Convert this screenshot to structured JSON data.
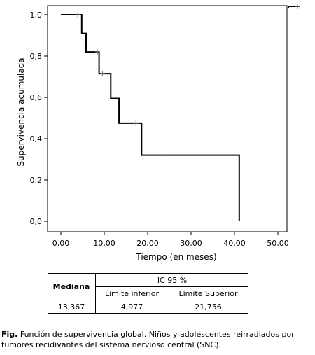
{
  "chart_data": {
    "type": "line",
    "subtype": "kaplan-meier step",
    "xlabel": "Tiempo (en meses)",
    "ylabel": "Supervivencia acumulada",
    "xlim": [
      0,
      52
    ],
    "ylim": [
      0,
      1.0
    ],
    "xticks": [
      "0,00",
      "10,00",
      "20,00",
      "30,00",
      "40,00",
      "50,00"
    ],
    "xtick_values": [
      0,
      10,
      20,
      30,
      40,
      50
    ],
    "yticks": [
      "0,0",
      "0,2",
      "0,4",
      "0,6",
      "0,8",
      "1,0"
    ],
    "ytick_values": [
      0,
      0.2,
      0.4,
      0.6,
      0.8,
      1.0
    ],
    "steps": [
      {
        "x": 0,
        "y": 1.0
      },
      {
        "x": 4.8,
        "y": 1.0
      },
      {
        "x": 4.8,
        "y": 0.91
      },
      {
        "x": 5.8,
        "y": 0.91
      },
      {
        "x": 5.8,
        "y": 0.82
      },
      {
        "x": 8.8,
        "y": 0.82
      },
      {
        "x": 8.8,
        "y": 0.715
      },
      {
        "x": 11.5,
        "y": 0.715
      },
      {
        "x": 11.5,
        "y": 0.595
      },
      {
        "x": 13.4,
        "y": 0.595
      },
      {
        "x": 13.4,
        "y": 0.475
      },
      {
        "x": 18.6,
        "y": 0.475
      },
      {
        "x": 18.6,
        "y": 0.32
      },
      {
        "x": 41.1,
        "y": 0.32
      },
      {
        "x": 41.1,
        "y": 0.0
      }
    ],
    "censored": [
      {
        "x": 3.9,
        "y": 1.0
      },
      {
        "x": 8.4,
        "y": 0.82
      },
      {
        "x": 9.6,
        "y": 0.715
      },
      {
        "x": 17.3,
        "y": 0.475
      },
      {
        "x": 23.3,
        "y": 0.32
      }
    ],
    "grid": false,
    "legend": {
      "position": "top-right",
      "line_color": "#000000"
    },
    "line_color": "#000000"
  },
  "stats_table": {
    "median_header": "Mediana",
    "ci_header": "IC 95 %",
    "lower_header": "Límite inferior",
    "upper_header": "Límite Superior",
    "median_value": "13,367",
    "lower_value": "4,977",
    "upper_value": "21,756"
  },
  "caption": {
    "label": "Fig.",
    "text": " Función de supervivencia global. Niños y adolescentes reirradiados por tumores recidivantes del sistema nervioso central (SNC)."
  }
}
